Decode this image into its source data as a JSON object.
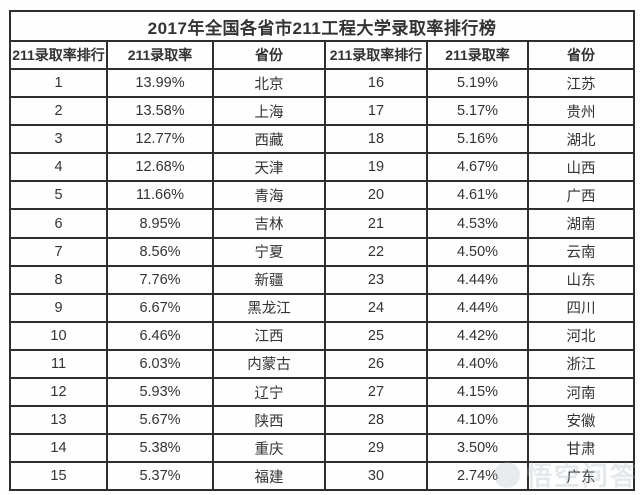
{
  "title": "2017年全国各省市211工程大学录取率排行榜",
  "headers": [
    "211录取率排行",
    "211录取率",
    "省份",
    "211录取率排行",
    "211录取率",
    "省份"
  ],
  "rows": [
    [
      "1",
      "13.99%",
      "北京",
      "16",
      "5.19%",
      "江苏"
    ],
    [
      "2",
      "13.58%",
      "上海",
      "17",
      "5.17%",
      "贵州"
    ],
    [
      "3",
      "12.77%",
      "西藏",
      "18",
      "5.16%",
      "湖北"
    ],
    [
      "4",
      "12.68%",
      "天津",
      "19",
      "4.67%",
      "山西"
    ],
    [
      "5",
      "11.66%",
      "青海",
      "20",
      "4.61%",
      "广西"
    ],
    [
      "6",
      "8.95%",
      "吉林",
      "21",
      "4.53%",
      "湖南"
    ],
    [
      "7",
      "8.56%",
      "宁夏",
      "22",
      "4.50%",
      "云南"
    ],
    [
      "8",
      "7.76%",
      "新疆",
      "23",
      "4.44%",
      "山东"
    ],
    [
      "9",
      "6.67%",
      "黑龙江",
      "24",
      "4.44%",
      "四川"
    ],
    [
      "10",
      "6.46%",
      "江西",
      "25",
      "4.42%",
      "河北"
    ],
    [
      "11",
      "6.03%",
      "内蒙古",
      "26",
      "4.40%",
      "浙江"
    ],
    [
      "12",
      "5.93%",
      "辽宁",
      "27",
      "4.15%",
      "河南"
    ],
    [
      "13",
      "5.67%",
      "陕西",
      "28",
      "4.10%",
      "安徽"
    ],
    [
      "14",
      "5.38%",
      "重庆",
      "29",
      "3.50%",
      "甘肃"
    ],
    [
      "15",
      "5.37%",
      "福建",
      "30",
      "2.74%",
      "广东"
    ]
  ],
  "watermark": "悟空问答",
  "colors": {
    "border": "#2e2e2e",
    "text": "#333333",
    "background": "#fdfdfd",
    "watermark": "#aab6bf"
  },
  "chart_data": {
    "type": "table",
    "title": "2017年全国各省市211工程大学录取率排行榜",
    "columns": [
      "211录取率排行",
      "211录取率",
      "省份"
    ],
    "rows": [
      [
        1,
        "13.99%",
        "北京"
      ],
      [
        2,
        "13.58%",
        "上海"
      ],
      [
        3,
        "12.77%",
        "西藏"
      ],
      [
        4,
        "12.68%",
        "天津"
      ],
      [
        5,
        "11.66%",
        "青海"
      ],
      [
        6,
        "8.95%",
        "吉林"
      ],
      [
        7,
        "8.56%",
        "宁夏"
      ],
      [
        8,
        "7.76%",
        "新疆"
      ],
      [
        9,
        "6.67%",
        "黑龙江"
      ],
      [
        10,
        "6.46%",
        "江西"
      ],
      [
        11,
        "6.03%",
        "内蒙古"
      ],
      [
        12,
        "5.93%",
        "辽宁"
      ],
      [
        13,
        "5.67%",
        "陕西"
      ],
      [
        14,
        "5.38%",
        "重庆"
      ],
      [
        15,
        "5.37%",
        "福建"
      ],
      [
        16,
        "5.19%",
        "江苏"
      ],
      [
        17,
        "5.17%",
        "贵州"
      ],
      [
        18,
        "5.16%",
        "湖北"
      ],
      [
        19,
        "4.67%",
        "山西"
      ],
      [
        20,
        "4.61%",
        "广西"
      ],
      [
        21,
        "4.53%",
        "湖南"
      ],
      [
        22,
        "4.50%",
        "云南"
      ],
      [
        23,
        "4.44%",
        "山东"
      ],
      [
        24,
        "4.44%",
        "四川"
      ],
      [
        25,
        "4.42%",
        "河北"
      ],
      [
        26,
        "4.40%",
        "浙江"
      ],
      [
        27,
        "4.15%",
        "河南"
      ],
      [
        28,
        "4.10%",
        "安徽"
      ],
      [
        29,
        "3.50%",
        "甘肃"
      ],
      [
        30,
        "2.74%",
        "广东"
      ]
    ],
    "layout": {
      "split_view": "ranks 1-15 left half, ranks 16-30 right half",
      "grid": true
    }
  }
}
